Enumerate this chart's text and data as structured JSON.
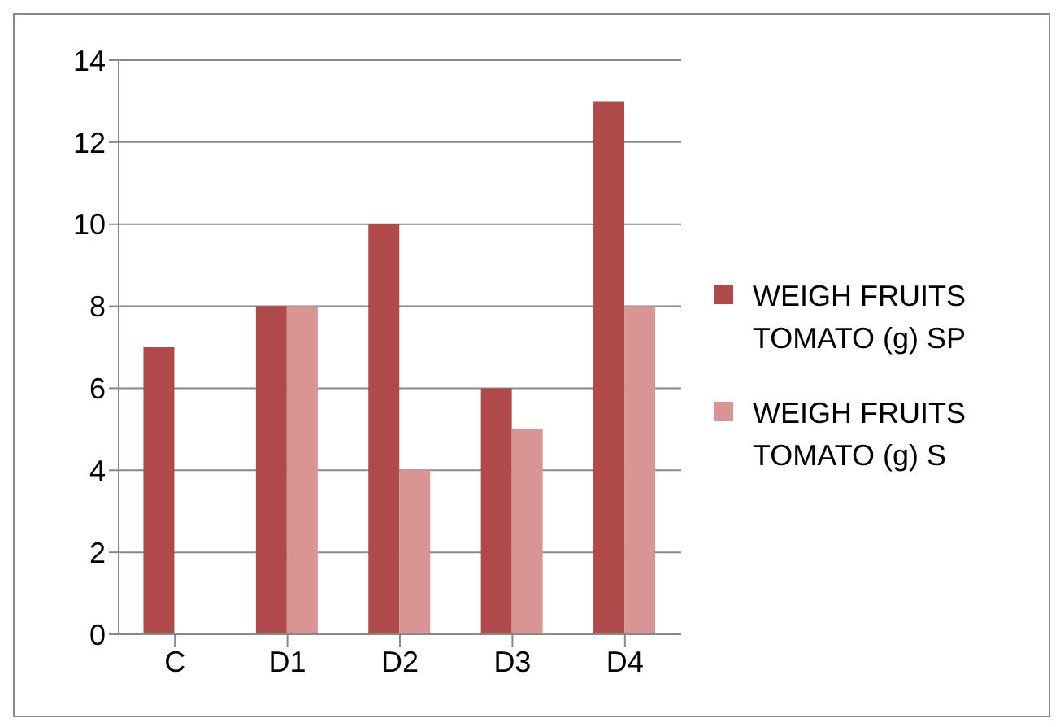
{
  "chart_data": {
    "type": "bar",
    "categories": [
      "C",
      "D1",
      "D2",
      "D3",
      "D4"
    ],
    "series": [
      {
        "name": "WEIGH FRUITS TOMATO (g) SP",
        "color": "#b0494a",
        "values": [
          7,
          8,
          10,
          6,
          13
        ]
      },
      {
        "name": "WEIGH FRUITS TOMATO (g) S",
        "color": "#d99594",
        "values": [
          null,
          8,
          4,
          5,
          8
        ]
      }
    ],
    "ylim": [
      0,
      14
    ],
    "yticks": [
      0,
      2,
      4,
      6,
      8,
      10,
      12,
      14
    ],
    "grid": "y",
    "legend": "right"
  }
}
